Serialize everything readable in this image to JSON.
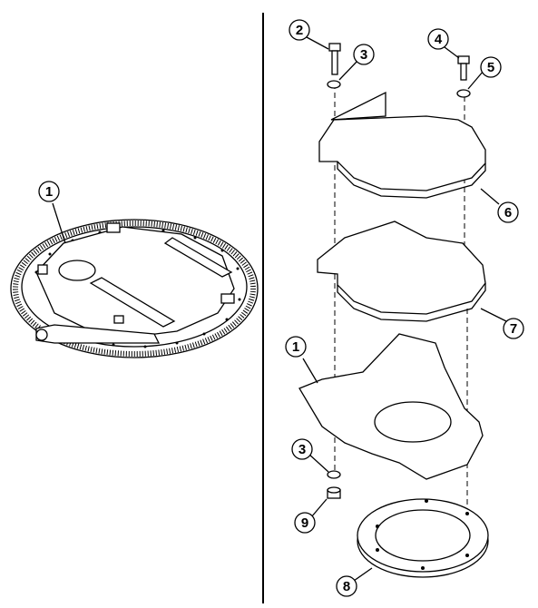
{
  "figure": {
    "left_view": {
      "callouts": [
        {
          "id": "left-callout-1",
          "label": "1"
        }
      ]
    },
    "right_view": {
      "callouts": [
        {
          "id": "callout-2",
          "label": "2"
        },
        {
          "id": "callout-3-top",
          "label": "3"
        },
        {
          "id": "callout-4",
          "label": "4"
        },
        {
          "id": "callout-5",
          "label": "5"
        },
        {
          "id": "callout-6",
          "label": "6"
        },
        {
          "id": "callout-7",
          "label": "7"
        },
        {
          "id": "callout-1",
          "label": "1"
        },
        {
          "id": "callout-3-bottom",
          "label": "3"
        },
        {
          "id": "callout-9",
          "label": "9"
        },
        {
          "id": "callout-8",
          "label": "8"
        }
      ]
    }
  }
}
